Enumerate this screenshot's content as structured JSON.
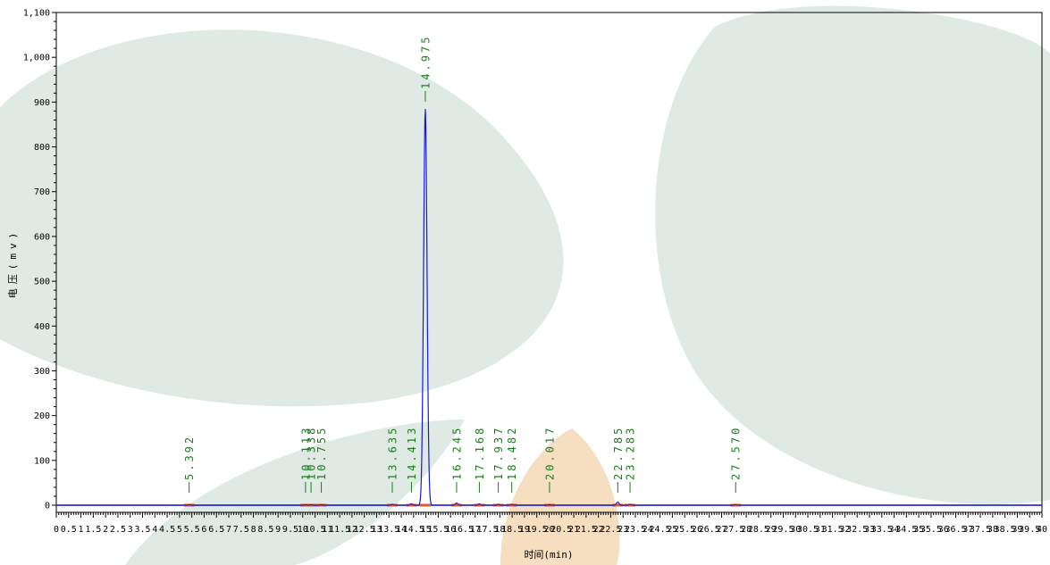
{
  "chart_data": {
    "type": "line",
    "xlabel": "时间(min)",
    "ylabel": "电压(mv)",
    "xlim": [
      0,
      40
    ],
    "ylim": [
      -10,
      1100
    ],
    "x_ticks": [
      "0",
      "0.5",
      "1",
      "1.5",
      "2",
      "2.5",
      "3",
      "3.5",
      "4",
      "4.5",
      "5",
      "5.5",
      "6",
      "6.5",
      "7",
      "7.5",
      "8",
      "8.5",
      "9",
      "9.5",
      "10",
      "10.5",
      "11",
      "11.5",
      "12",
      "12.5",
      "13",
      "13.5",
      "14",
      "14.5",
      "15",
      "15.5",
      "16",
      "16.5",
      "17",
      "17.5",
      "18",
      "18.5",
      "19",
      "19.5",
      "20",
      "20.5",
      "21",
      "21.5",
      "22",
      "22.5",
      "23",
      "23.5",
      "24",
      "24.5",
      "25",
      "25.5",
      "26",
      "26.5",
      "27",
      "27.5",
      "28",
      "28.5",
      "29",
      "29.5",
      "30",
      "30.5",
      "31",
      "31.5",
      "32",
      "32.5",
      "33",
      "33.5",
      "34",
      "34.5",
      "35",
      "35.5",
      "36",
      "36.5",
      "37",
      "37.5",
      "38",
      "38.5",
      "39",
      "39.5",
      "40"
    ],
    "y_ticks": [
      "0",
      "100",
      "200",
      "300",
      "400",
      "500",
      "600",
      "700",
      "800",
      "900",
      "1,000",
      "1,100"
    ],
    "peaks": [
      {
        "rt": 5.392,
        "label": "5.392",
        "height": 1
      },
      {
        "rt": 10.113,
        "label": "10.113",
        "height": 1
      },
      {
        "rt": 10.338,
        "label": "10.338",
        "height": 1
      },
      {
        "rt": 10.755,
        "label": "10.755",
        "height": 1
      },
      {
        "rt": 13.635,
        "label": "13.635",
        "height": 2
      },
      {
        "rt": 14.413,
        "label": "14.413",
        "height": 3
      },
      {
        "rt": 14.975,
        "label": "14.975",
        "height": 885
      },
      {
        "rt": 16.245,
        "label": "16.245",
        "height": 5
      },
      {
        "rt": 17.168,
        "label": "17.168",
        "height": 3
      },
      {
        "rt": 17.937,
        "label": "17.937",
        "height": 2
      },
      {
        "rt": 18.482,
        "label": "18.482",
        "height": 2
      },
      {
        "rt": 20.017,
        "label": "20.017",
        "height": 1
      },
      {
        "rt": 22.785,
        "label": "22.785",
        "height": 7
      },
      {
        "rt": 23.283,
        "label": "23.283",
        "height": 2
      },
      {
        "rt": 27.57,
        "label": "27.570",
        "height": 1
      }
    ],
    "baseline_mv": 0,
    "colors": {
      "trace": "#1a1ad6",
      "peak_label": "#1a7f1a",
      "baseline_marker": "#e05a2a",
      "axis": "#000000"
    }
  }
}
